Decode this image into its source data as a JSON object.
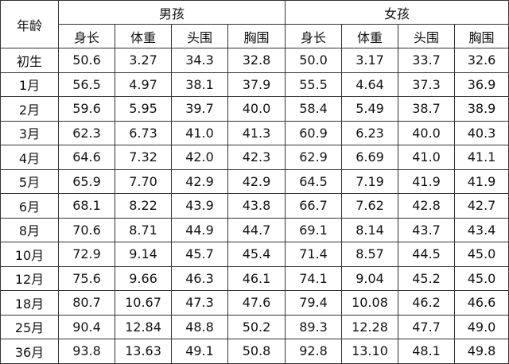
{
  "headers": {
    "age": "年龄",
    "boys": "男孩",
    "girls": "女孩",
    "metrics": [
      "身长",
      "体重",
      "头围",
      "胸围"
    ]
  },
  "rows": [
    {
      "age": "初生",
      "boy": [
        "50.6",
        "3.27",
        "34.3",
        "32.8"
      ],
      "girl": [
        "50.0",
        "3.17",
        "33.7",
        "32.6"
      ]
    },
    {
      "age": "1月",
      "boy": [
        "56.5",
        "4.97",
        "38.1",
        "37.9"
      ],
      "girl": [
        "55.5",
        "4.64",
        "37.3",
        "36.9"
      ]
    },
    {
      "age": "2月",
      "boy": [
        "59.6",
        "5.95",
        "39.7",
        "40.0"
      ],
      "girl": [
        "58.4",
        "5.49",
        "38.7",
        "38.9"
      ]
    },
    {
      "age": "3月",
      "boy": [
        "62.3",
        "6.73",
        "41.0",
        "41.3"
      ],
      "girl": [
        "60.9",
        "6.23",
        "40.0",
        "40.3"
      ]
    },
    {
      "age": "4月",
      "boy": [
        "64.6",
        "7.32",
        "42.0",
        "42.3"
      ],
      "girl": [
        "62.9",
        "6.69",
        "41.0",
        "41.1"
      ]
    },
    {
      "age": "5月",
      "boy": [
        "65.9",
        "7.70",
        "42.9",
        "42.9"
      ],
      "girl": [
        "64.5",
        "7.19",
        "41.9",
        "41.9"
      ]
    },
    {
      "age": "6月",
      "boy": [
        "68.1",
        "8.22",
        "43.9",
        "43.8"
      ],
      "girl": [
        "66.7",
        "7.62",
        "42.8",
        "42.7"
      ]
    },
    {
      "age": "8月",
      "boy": [
        "70.6",
        "8.71",
        "44.9",
        "44.7"
      ],
      "girl": [
        "69.1",
        "8.14",
        "43.7",
        "43.4"
      ]
    },
    {
      "age": "10月",
      "boy": [
        "72.9",
        "9.14",
        "45.7",
        "45.4"
      ],
      "girl": [
        "71.4",
        "8.57",
        "44.5",
        "45.0"
      ]
    },
    {
      "age": "12月",
      "boy": [
        "75.6",
        "9.66",
        "46.3",
        "46.1"
      ],
      "girl": [
        "74.1",
        "9.04",
        "45.2",
        "45.0"
      ]
    },
    {
      "age": "18月",
      "boy": [
        "80.7",
        "10.67",
        "47.3",
        "47.6"
      ],
      "girl": [
        "79.4",
        "10.08",
        "46.2",
        "46.6"
      ]
    },
    {
      "age": "25月",
      "boy": [
        "90.4",
        "12.84",
        "48.8",
        "50.2"
      ],
      "girl": [
        "89.3",
        "12.28",
        "47.7",
        "49.0"
      ]
    },
    {
      "age": "36月",
      "boy": [
        "93.8",
        "13.63",
        "49.1",
        "50.8"
      ],
      "girl": [
        "92.8",
        "13.10",
        "48.1",
        "49.8"
      ]
    }
  ]
}
